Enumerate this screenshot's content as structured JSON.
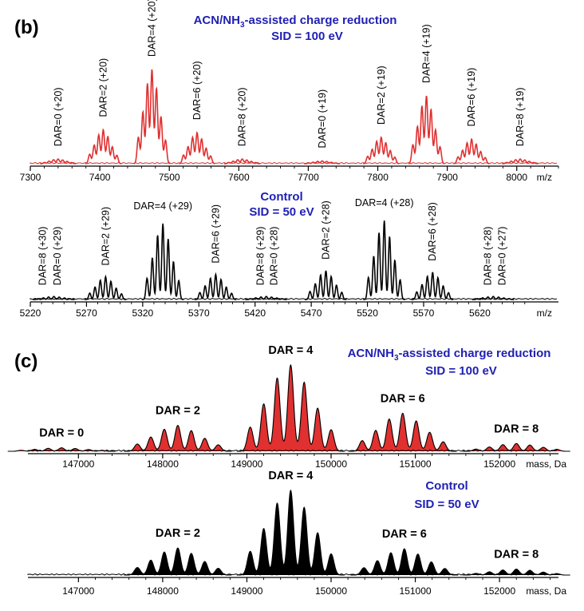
{
  "panel_b": {
    "label": "(b)",
    "top": {
      "title_line1_pre": "ACN/NH",
      "title_line1_sub": "3",
      "title_line1_post": "-assisted charge reduction",
      "title_line2": "SID = 100 eV",
      "axis_unit": "m/z"
    },
    "bottom": {
      "title_line1": "Control",
      "title_line2": "SID = 50 eV",
      "axis_unit": "m/z"
    }
  },
  "panel_c": {
    "label": "(c)",
    "top": {
      "title_line1_pre": "ACN/NH",
      "title_line1_sub": "3",
      "title_line1_post": "-assisted charge reduction",
      "title_line2": "SID = 100 eV",
      "axis_unit": "mass, Da"
    },
    "bottom": {
      "title_line1": "Control",
      "title_line2": "SID = 50 eV",
      "axis_unit": "mass, Da"
    }
  },
  "colors": {
    "treated": "#e03030",
    "control": "#000000",
    "title_blue": "#1f1fb4",
    "axis": "#000000"
  },
  "chart_data": [
    {
      "type": "line",
      "id": "b-top",
      "xlim": [
        7300,
        8060
      ],
      "xticks": [
        7300,
        7400,
        7500,
        7600,
        7700,
        7800,
        7900,
        8000
      ],
      "xlabel": "m/z",
      "color": "#e03030",
      "fill": false,
      "peaks": [
        {
          "center": 7340,
          "height": 0.05
        },
        {
          "center": 7405,
          "height": 0.36
        },
        {
          "center": 7475,
          "height": 1.0
        },
        {
          "center": 7540,
          "height": 0.33
        },
        {
          "center": 7605,
          "height": 0.05
        },
        {
          "center": 7720,
          "height": 0.03
        },
        {
          "center": 7805,
          "height": 0.28
        },
        {
          "center": 7870,
          "height": 0.72
        },
        {
          "center": 7935,
          "height": 0.26
        },
        {
          "center": 8005,
          "height": 0.05
        }
      ],
      "annotations": [
        {
          "text": "DAR=0 (+20)",
          "x": 7340
        },
        {
          "text": "DAR=2 (+20)",
          "x": 7405
        },
        {
          "text": "DAR=4 (+20)",
          "x": 7475
        },
        {
          "text": "DAR=6 (+20)",
          "x": 7540
        },
        {
          "text": "DAR=8 (+20)",
          "x": 7605
        },
        {
          "text": "DAR=0 (+19)",
          "x": 7720
        },
        {
          "text": "DAR=2 (+19)",
          "x": 7805
        },
        {
          "text": "DAR=4 (+19)",
          "x": 7870
        },
        {
          "text": "DAR=6 (+19)",
          "x": 7935
        },
        {
          "text": "DAR=8 (+19)",
          "x": 8005
        }
      ]
    },
    {
      "type": "line",
      "id": "b-bottom",
      "xlim": [
        5220,
        5690
      ],
      "xticks": [
        5220,
        5270,
        5320,
        5370,
        5420,
        5470,
        5520,
        5570,
        5620
      ],
      "xlabel": "m/z",
      "color": "#000000",
      "fill": false,
      "peaks": [
        {
          "center": 5241,
          "height": 0.04
        },
        {
          "center": 5287,
          "height": 0.3
        },
        {
          "center": 5338,
          "height": 1.0
        },
        {
          "center": 5385,
          "height": 0.33
        },
        {
          "center": 5430,
          "height": 0.04
        },
        {
          "center": 5483,
          "height": 0.38
        },
        {
          "center": 5535,
          "height": 1.04
        },
        {
          "center": 5578,
          "height": 0.36
        },
        {
          "center": 5632,
          "height": 0.04
        }
      ],
      "annotations": [
        {
          "text": "DAR=8 (+30)",
          "x": 5231
        },
        {
          "text": "DAR=0 (+29)",
          "x": 5244
        },
        {
          "text": "DAR=2 (+29)",
          "x": 5287
        },
        {
          "text": "DAR=4 (+29)",
          "x": 5338
        },
        {
          "text": "DAR=6 (+29)",
          "x": 5385
        },
        {
          "text": "DAR=8 (+29)",
          "x": 5425
        },
        {
          "text": "DAR=0 (+28)",
          "x": 5437
        },
        {
          "text": "DAR=2 (+28)",
          "x": 5483
        },
        {
          "text": "DAR=4 (+28)",
          "x": 5535
        },
        {
          "text": "DAR=6 (+28)",
          "x": 5578
        },
        {
          "text": "DAR=8 (+28)",
          "x": 5627
        },
        {
          "text": "DAR=0 (+27)",
          "x": 5640
        }
      ]
    },
    {
      "type": "area",
      "id": "c-top",
      "xlim": [
        146400,
        152700
      ],
      "xticks": [
        147000,
        148000,
        149000,
        150000,
        151000,
        152000
      ],
      "xlabel": "mass, Da",
      "color": "#e03030",
      "fill": true,
      "peaks": [
        {
          "center": 146800,
          "height": 0.04
        },
        {
          "center": 148180,
          "height": 0.3
        },
        {
          "center": 149520,
          "height": 1.0
        },
        {
          "center": 150850,
          "height": 0.44
        },
        {
          "center": 152200,
          "height": 0.09
        }
      ],
      "annotations": [
        {
          "text": "DAR = 0",
          "x": 146800
        },
        {
          "text": "DAR = 2",
          "x": 148180
        },
        {
          "text": "DAR = 4",
          "x": 149520
        },
        {
          "text": "DAR = 6",
          "x": 150850
        },
        {
          "text": "DAR = 8",
          "x": 152200
        }
      ]
    },
    {
      "type": "area",
      "id": "c-bottom",
      "xlim": [
        146400,
        152700
      ],
      "xticks": [
        147000,
        148000,
        149000,
        150000,
        151000,
        152000
      ],
      "xlabel": "mass, Da",
      "color": "#000000",
      "fill": true,
      "peaks": [
        {
          "center": 148180,
          "height": 0.32
        },
        {
          "center": 149520,
          "height": 1.0
        },
        {
          "center": 150870,
          "height": 0.31
        },
        {
          "center": 152200,
          "height": 0.07
        }
      ],
      "annotations": [
        {
          "text": "DAR = 2",
          "x": 148180
        },
        {
          "text": "DAR = 4",
          "x": 149520
        },
        {
          "text": "DAR = 6",
          "x": 150870
        },
        {
          "text": "DAR = 8",
          "x": 152200
        }
      ]
    }
  ]
}
